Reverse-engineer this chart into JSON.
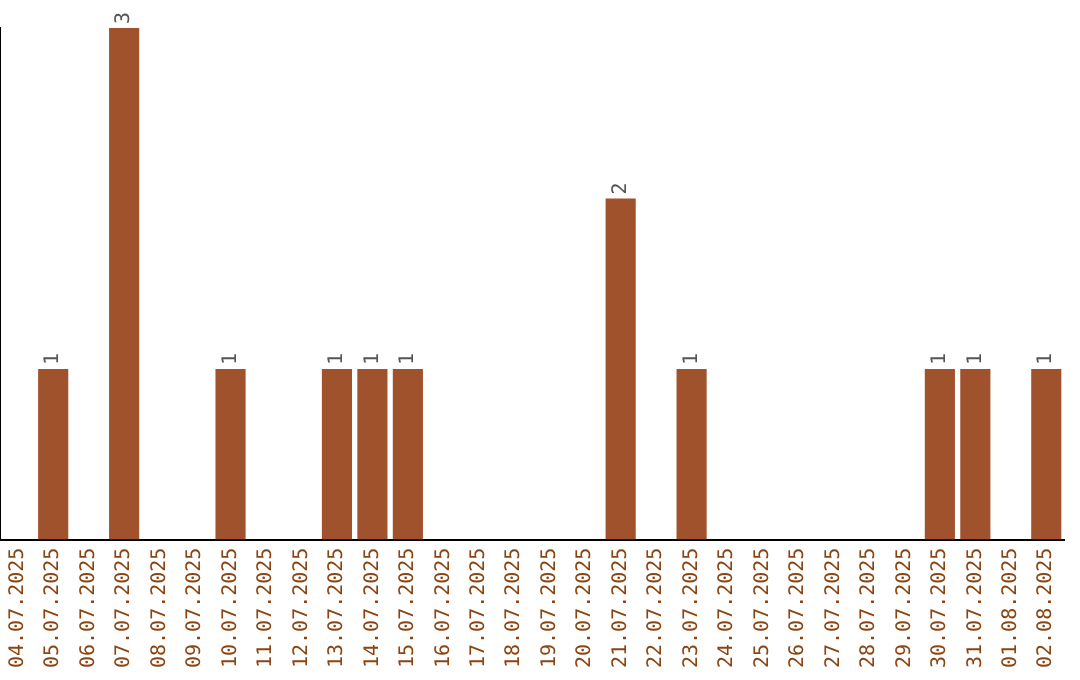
{
  "chart_data": {
    "type": "bar",
    "categories": [
      "04.07.2025",
      "05.07.2025",
      "06.07.2025",
      "07.07.2025",
      "08.07.2025",
      "09.07.2025",
      "10.07.2025",
      "11.07.2025",
      "12.07.2025",
      "13.07.2025",
      "14.07.2025",
      "15.07.2025",
      "16.07.2025",
      "17.07.2025",
      "18.07.2025",
      "19.07.2025",
      "20.07.2025",
      "21.07.2025",
      "22.07.2025",
      "23.07.2025",
      "24.07.2025",
      "25.07.2025",
      "26.07.2025",
      "27.07.2025",
      "28.07.2025",
      "29.07.2025",
      "30.07.2025",
      "31.07.2025",
      "01.08.2025",
      "02.08.2025"
    ],
    "values": [
      0,
      1,
      0,
      3,
      0,
      0,
      1,
      0,
      0,
      1,
      1,
      1,
      0,
      0,
      0,
      0,
      0,
      2,
      0,
      1,
      0,
      0,
      0,
      0,
      0,
      0,
      1,
      1,
      0,
      1
    ],
    "value_labels": [
      null,
      "1",
      null,
      "3",
      null,
      null,
      "1",
      null,
      null,
      "1",
      "1",
      "1",
      null,
      null,
      null,
      null,
      null,
      "2",
      null,
      "1",
      null,
      null,
      null,
      null,
      null,
      null,
      "1",
      "1",
      null,
      "1"
    ],
    "color": "#a0522d",
    "tick_labels": "x",
    "grid": false,
    "legend": false
  }
}
